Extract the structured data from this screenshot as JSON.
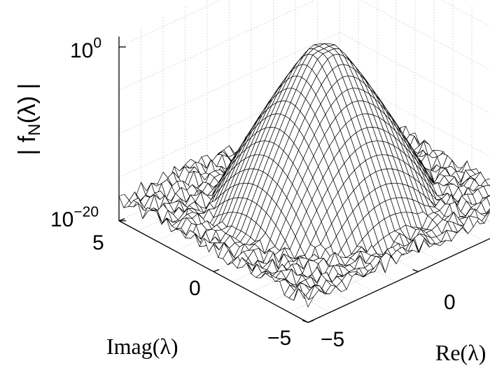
{
  "chart_data": {
    "type": "surface",
    "x_axis": {
      "label": "Re(λ)",
      "range": [
        -5,
        5
      ],
      "ticks": [
        {
          "value": -5,
          "label": "−5"
        },
        {
          "value": 0,
          "label": "0"
        }
      ]
    },
    "y_axis": {
      "label": "Imag(λ)",
      "range": [
        -5,
        5
      ],
      "ticks": [
        {
          "value": -5,
          "label": "−5"
        },
        {
          "value": 0,
          "label": "0"
        },
        {
          "value": 5,
          "label": "5"
        }
      ]
    },
    "z_axis": {
      "label": "| f_N(λ) |",
      "scale": "log",
      "range": [
        1e-20,
        1
      ],
      "ticks": [
        {
          "value": 1e-20,
          "base": "10",
          "exp": "−20"
        },
        {
          "value": 1,
          "base": "10",
          "exp": "0"
        }
      ]
    },
    "grid": true,
    "surface": {
      "peak_log10": -0.2,
      "peak_plateau_radius": 0.45,
      "noise_floor_log10": -17.5,
      "grid_points": 41
    }
  }
}
